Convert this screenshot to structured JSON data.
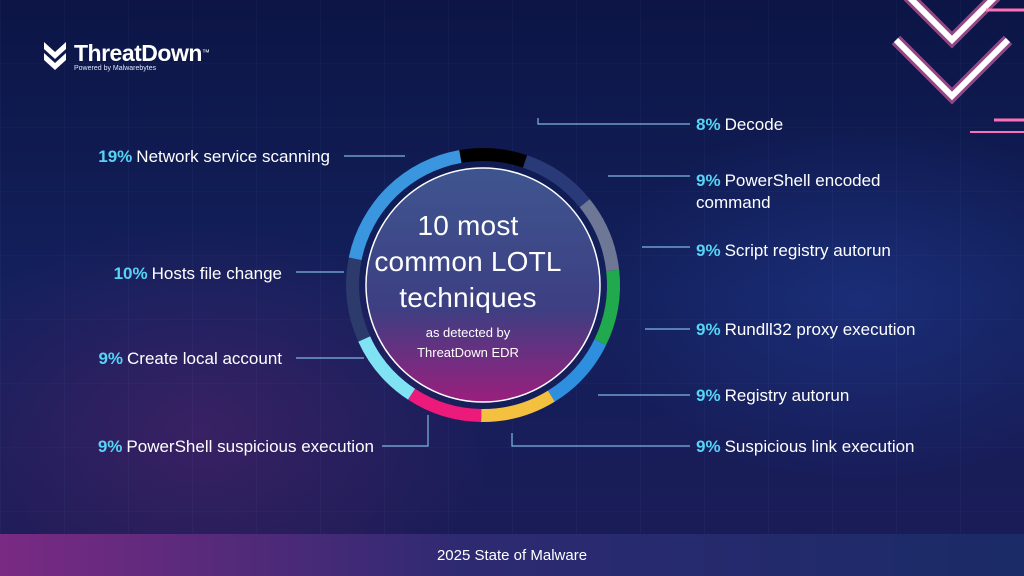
{
  "brand": {
    "name": "ThreatDown",
    "trademark": "™",
    "tagline": "Powered by Malwarebytes"
  },
  "center": {
    "title_line1": "10 most",
    "title_line2": "common LOTL",
    "title_line3": "techniques",
    "sub_line1": "as detected by",
    "sub_line2": "ThreatDown EDR"
  },
  "footer": {
    "text": "2025 State of Malware"
  },
  "colors": {
    "accent_pct": "#56d3f5",
    "leader_line": "#7fb7e0"
  },
  "chart_data": {
    "type": "pie",
    "title": "10 most common LOTL techniques",
    "subtitle": "as detected by ThreatDown EDR",
    "slices": [
      {
        "label": "Decode",
        "value": 8,
        "pct_text": "8%",
        "color": "#000000"
      },
      {
        "label": "PowerShell encoded command",
        "label_line1": "PowerShell encoded",
        "label_line2": "command",
        "value": 9,
        "pct_text": "9%",
        "color": "#2a3a78"
      },
      {
        "label": "Script registry autorun",
        "value": 9,
        "pct_text": "9%",
        "color": "#6e7795"
      },
      {
        "label": "Rundll32 proxy execution",
        "value": 9,
        "pct_text": "9%",
        "color": "#21a94e"
      },
      {
        "label": "Registry autorun",
        "value": 9,
        "pct_text": "9%",
        "color": "#2f8fdf"
      },
      {
        "label": "Suspicious link execution",
        "value": 9,
        "pct_text": "9%",
        "color": "#f4c040"
      },
      {
        "label": "PowerShell suspicious execution",
        "value": 9,
        "pct_text": "9%",
        "color": "#ec1a7a"
      },
      {
        "label": "Create local account",
        "value": 9,
        "pct_text": "9%",
        "color": "#7fe3f4"
      },
      {
        "label": "Hosts file change",
        "value": 10,
        "pct_text": "10%",
        "color": "#2c3a6c"
      },
      {
        "label": "Network service scanning",
        "value": 19,
        "pct_text": "19%",
        "color": "#3a96df"
      }
    ]
  }
}
